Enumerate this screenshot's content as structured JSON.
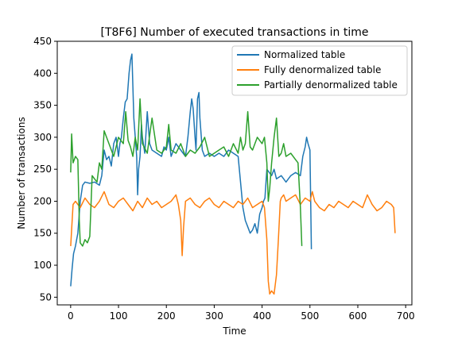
{
  "chart_data": {
    "type": "line",
    "title": "[T8F6] Number of executed transactions in time",
    "xlabel": "Time",
    "ylabel": "Number of transactions",
    "xlim": [
      -28,
      713
    ],
    "ylim": [
      38,
      450
    ],
    "xticks": [
      0,
      100,
      200,
      300,
      400,
      500,
      600,
      700
    ],
    "yticks": [
      50,
      100,
      150,
      200,
      250,
      300,
      350,
      400,
      450
    ],
    "legend_position": "top-right",
    "series": [
      {
        "name": "Normalized table",
        "color": "#1f77b4",
        "x": [
          0,
          3,
          6,
          10,
          15,
          20,
          25,
          30,
          40,
          50,
          60,
          65,
          70,
          75,
          80,
          85,
          90,
          95,
          100,
          103,
          106,
          110,
          114,
          118,
          122,
          125,
          128,
          130,
          132,
          135,
          138,
          140,
          142,
          145,
          148,
          150,
          155,
          160,
          165,
          170,
          180,
          190,
          195,
          200,
          205,
          210,
          220,
          230,
          240,
          245,
          250,
          253,
          256,
          260,
          262,
          265,
          268,
          270,
          273,
          275,
          280,
          290,
          300,
          310,
          320,
          330,
          340,
          350,
          360,
          365,
          370,
          375,
          380,
          385,
          390,
          395,
          400,
          403,
          406,
          410,
          415,
          420,
          425,
          430,
          440,
          450,
          460,
          470,
          480,
          485,
          490,
          493,
          496,
          500,
          503
        ],
        "y": [
          67,
          95,
          118,
          130,
          150,
          200,
          225,
          230,
          228,
          230,
          225,
          240,
          280,
          265,
          270,
          255,
          290,
          300,
          270,
          290,
          300,
          330,
          355,
          360,
          400,
          420,
          430,
          380,
          330,
          300,
          270,
          210,
          250,
          270,
          320,
          300,
          275,
          340,
          290,
          280,
          275,
          270,
          285,
          280,
          300,
          270,
          290,
          280,
          270,
          300,
          340,
          360,
          345,
          300,
          280,
          360,
          370,
          330,
          300,
          280,
          270,
          275,
          270,
          275,
          270,
          280,
          275,
          270,
          190,
          170,
          160,
          150,
          155,
          165,
          150,
          180,
          190,
          200,
          205,
          250,
          245,
          240,
          250,
          235,
          240,
          230,
          240,
          245,
          240,
          270,
          285,
          300,
          290,
          280,
          125
        ]
      },
      {
        "name": "Fully denormalized table",
        "color": "#ff7f0e",
        "x": [
          0,
          5,
          10,
          20,
          30,
          40,
          50,
          60,
          70,
          80,
          90,
          100,
          110,
          120,
          130,
          140,
          150,
          160,
          170,
          180,
          190,
          200,
          210,
          220,
          225,
          230,
          233,
          236,
          240,
          250,
          260,
          270,
          280,
          290,
          300,
          310,
          320,
          330,
          340,
          350,
          360,
          370,
          380,
          390,
          400,
          405,
          410,
          413,
          416,
          420,
          425,
          430,
          434,
          438,
          440,
          445,
          450,
          460,
          470,
          480,
          490,
          500,
          505,
          510,
          520,
          530,
          540,
          550,
          560,
          570,
          580,
          590,
          600,
          610,
          620,
          630,
          640,
          650,
          660,
          670,
          675,
          678
        ],
        "y": [
          130,
          195,
          200,
          190,
          205,
          195,
          190,
          200,
          215,
          195,
          190,
          200,
          205,
          195,
          185,
          200,
          190,
          205,
          195,
          200,
          190,
          195,
          200,
          210,
          195,
          170,
          115,
          160,
          200,
          205,
          195,
          190,
          200,
          205,
          195,
          190,
          200,
          195,
          190,
          200,
          195,
          205,
          190,
          195,
          200,
          190,
          140,
          75,
          55,
          60,
          55,
          85,
          140,
          200,
          205,
          210,
          200,
          205,
          210,
          195,
          205,
          200,
          215,
          200,
          190,
          185,
          195,
          190,
          200,
          195,
          190,
          200,
          195,
          190,
          210,
          195,
          185,
          190,
          200,
          195,
          190,
          150
        ]
      },
      {
        "name": "Partially denormalized table",
        "color": "#2ca02c",
        "x": [
          0,
          2,
          5,
          10,
          15,
          18,
          20,
          25,
          30,
          35,
          40,
          45,
          50,
          55,
          60,
          65,
          70,
          80,
          90,
          100,
          110,
          115,
          120,
          125,
          130,
          135,
          140,
          145,
          150,
          160,
          170,
          180,
          190,
          200,
          205,
          210,
          220,
          230,
          240,
          250,
          260,
          270,
          280,
          290,
          300,
          310,
          320,
          330,
          340,
          350,
          355,
          360,
          365,
          370,
          375,
          380,
          390,
          400,
          405,
          410,
          413,
          416,
          420,
          425,
          430,
          435,
          440,
          445,
          450,
          460,
          470,
          475,
          480,
          483
        ],
        "y": [
          245,
          305,
          260,
          270,
          265,
          170,
          135,
          130,
          140,
          135,
          145,
          240,
          235,
          230,
          260,
          250,
          310,
          290,
          270,
          300,
          290,
          340,
          295,
          285,
          270,
          300,
          280,
          360,
          290,
          275,
          330,
          280,
          275,
          285,
          320,
          280,
          275,
          290,
          270,
          280,
          275,
          285,
          300,
          270,
          275,
          280,
          285,
          270,
          290,
          275,
          300,
          280,
          290,
          340,
          285,
          280,
          300,
          290,
          300,
          260,
          200,
          220,
          260,
          300,
          330,
          270,
          275,
          290,
          270,
          275,
          265,
          260,
          190,
          130
        ]
      }
    ]
  }
}
